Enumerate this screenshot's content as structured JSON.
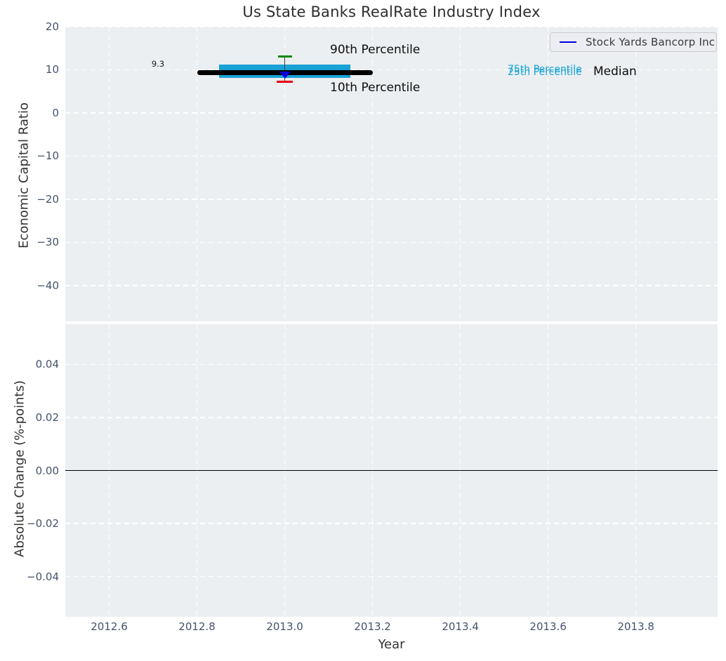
{
  "title": "Us State Banks RealRate Industry Index",
  "legend": {
    "label": "Stock Yards Bancorp Inc"
  },
  "annotations": {
    "p90": "90th Percentile",
    "p10": "10th Percentile",
    "p75": "75th Percentile",
    "p25": "25th Percentile",
    "median": "Median",
    "value_label": "9.3"
  },
  "colors": {
    "plot_background": "#eceff1",
    "grid": "#ffffff",
    "band": "#18a3d5",
    "percentile_label": "#18a3d5",
    "company_line": "#0000dd",
    "median_line": "#000000",
    "p90_cap": "#0a8a0a",
    "p10_cap": "#e3000f",
    "whisker": "#404040",
    "zero_line": "#000000",
    "tick_label": "#43536a"
  },
  "chart_data": [
    {
      "type": "box-timeline",
      "title": "Us State Banks RealRate Industry Index",
      "ylabel": "Economic Capital Ratio",
      "ylim": [
        -48.3,
        20
      ],
      "xlim": [
        2012.5,
        2013.986
      ],
      "grid": "dashed-white",
      "legend_position": "upper right",
      "yticks": [
        {
          "v": 20,
          "label": "20"
        },
        {
          "v": 10,
          "label": "10"
        },
        {
          "v": 0,
          "label": "0"
        },
        {
          "v": -10,
          "label": "−10"
        },
        {
          "v": -20,
          "label": "−20"
        },
        {
          "v": -30,
          "label": "−30"
        },
        {
          "v": -40,
          "label": "−40"
        }
      ],
      "series": {
        "year": 2013,
        "p10": 7.2,
        "p25": 8.2,
        "median": 9.3,
        "p75": 11.2,
        "p90": 13.1,
        "median_line_span": [
          2012.8,
          2013.2
        ],
        "iqr_band_span": [
          2012.85,
          2013.15
        ],
        "company": {
          "name": "Stock Yards Bancorp Inc",
          "year": 2013,
          "value": 9.3,
          "marker": "triangle-down"
        }
      }
    },
    {
      "type": "line",
      "ylabel": "Absolute Change (%-points)",
      "xlabel": "Year",
      "ylim": [
        -0.0552,
        0.0552
      ],
      "xlim": [
        2012.5,
        2013.986
      ],
      "grid": "dashed-white",
      "zero_line": 0.0,
      "yticks": [
        {
          "v": 0.04,
          "label": "0.04"
        },
        {
          "v": 0.02,
          "label": "0.02"
        },
        {
          "v": 0,
          "label": "0.00"
        },
        {
          "v": -0.02,
          "label": "−0.02"
        },
        {
          "v": -0.04,
          "label": "−0.04"
        }
      ],
      "xticks": [
        {
          "v": 2012.6,
          "label": "2012.6"
        },
        {
          "v": 2012.8,
          "label": "2012.8"
        },
        {
          "v": 2013.0,
          "label": "2013.0"
        },
        {
          "v": 2013.2,
          "label": "2013.2"
        },
        {
          "v": 2013.4,
          "label": "2013.4"
        },
        {
          "v": 2013.6,
          "label": "2013.6"
        },
        {
          "v": 2013.8,
          "label": "2013.8"
        }
      ]
    }
  ]
}
